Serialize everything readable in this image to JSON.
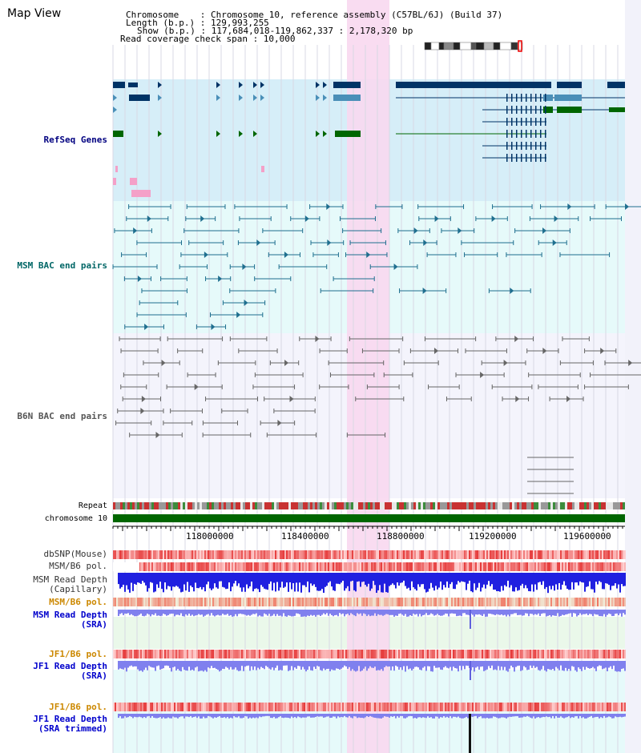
{
  "header": {
    "view_title": "Map View",
    "chromosome_line": "Chromosome    : Chromosome 10, reference assembly (C57BL/6J) (Build 37)",
    "length_line": "Length (b.p.) : 129,993,255",
    "show_line": "Show (b.p.) : 117,684,018-119,862,337 : 2,178,320 bp",
    "coverage_line": "Read coverage check span : 10,000"
  },
  "tracks": {
    "refseq": "RefSeq Genes",
    "msm_bac": "MSM BAC end pairs",
    "b6n_bac": "B6N BAC end pairs",
    "repeat": "Repeat",
    "chromosome": "chromosome 10",
    "dbsnp": "dbSNP(Mouse)",
    "msm_b6_pol": "MSM/B6 pol.",
    "msm_depth_cap": "MSM Read Depth\n(Capillary)",
    "msm_b6_pol_2": "MSM/B6 pol.",
    "msm_depth_sra": "MSM Read Depth\n(SRA)",
    "jf1_b6_pol": "JF1/B6 pol.",
    "jf1_depth_sra": "JF1 Read Depth\n(SRA)",
    "jf1_b6_pol_2": "JF1/B6 pol.",
    "jf1_depth_trim": "JF1 Read Depth\n(SRA trimmed)"
  },
  "axis": {
    "ticks": [
      "118000000",
      "118400000",
      "118800000",
      "119200000",
      "119600000"
    ]
  },
  "colors": {
    "label_navy": "#000080",
    "label_teal": "#006666",
    "label_gray": "#555555",
    "label_orange": "#cc8800",
    "label_blue": "#0000cc",
    "refseq_bg": "#d6eef8",
    "msm_bg": "#e6fafa",
    "b6n_bg": "#f4f4fc",
    "highlight": "#f8d8f0",
    "gene_navy": "#003366",
    "gene_blue": "#4a8fb8",
    "gene_green": "#006600",
    "chromosome_bar": "#006600"
  }
}
